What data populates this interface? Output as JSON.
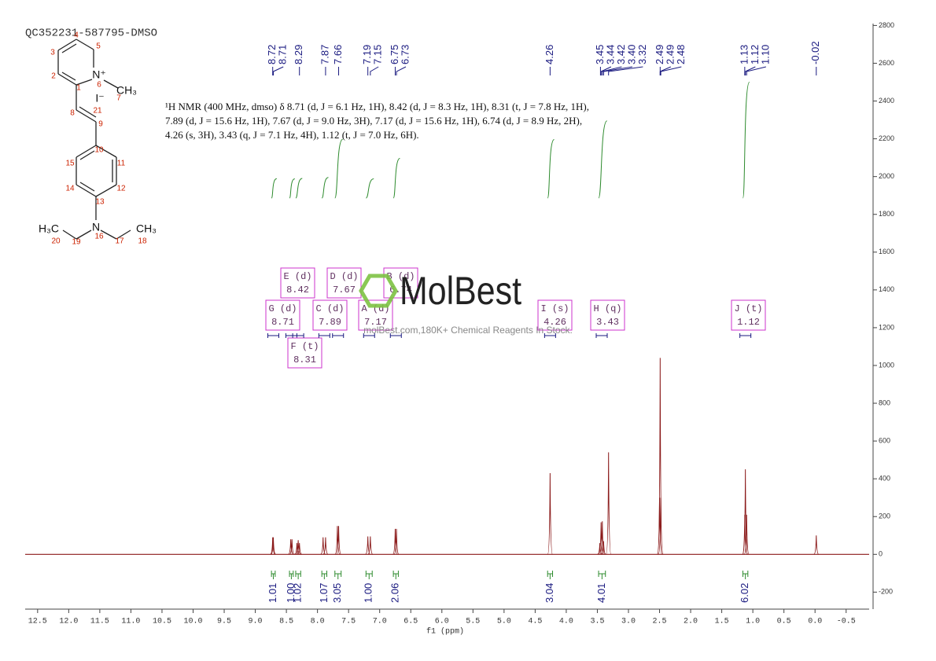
{
  "chart_data": {
    "type": "spectrum",
    "title": "QC352231-587795-DMSO",
    "annotation": [
      "¹H NMR (400 MHz, dmso) δ 8.71 (d, J = 6.1 Hz, 1H), 8.42 (d, J = 8.3 Hz, 1H), 8.31 (t, J = 7.8 Hz, 1H),",
      "7.89 (d, J = 15.6 Hz, 1H), 7.67 (d, J = 9.0 Hz, 3H), 7.17 (d, J = 15.6 Hz, 1H), 6.74 (d, J = 8.9 Hz, 2H),",
      "4.26 (s, 3H), 3.43 (q, J = 7.1 Hz, 4H), 1.12 (t, J = 7.0 Hz, 6H)."
    ],
    "x_label": "f1 (ppm)",
    "color": "#8b1a1a",
    "x": [
      8.72,
      8.71,
      8.43,
      8.41,
      8.33,
      8.31,
      8.29,
      7.91,
      7.87,
      7.68,
      7.66,
      7.19,
      7.15,
      6.75,
      6.73,
      4.26,
      3.46,
      3.44,
      3.42,
      3.4,
      3.32,
      2.5,
      2.49,
      2.48,
      1.13,
      1.12,
      1.1,
      -0.02
    ],
    "values": [
      90,
      90,
      80,
      80,
      60,
      75,
      60,
      90,
      90,
      150,
      150,
      95,
      95,
      135,
      135,
      430,
      60,
      170,
      175,
      70,
      540,
      300,
      1040,
      300,
      210,
      450,
      210,
      100
    ],
    "xlim": [
      12.7,
      -0.87
    ],
    "ylim": [
      -290,
      2810
    ],
    "xticks": [
      12.5,
      {
        "value": 12,
        "label": "12.0"
      },
      11.5,
      {
        "value": 11,
        "label": "11.0"
      },
      10.5,
      {
        "value": 10,
        "label": "10.0"
      },
      9.5,
      {
        "value": 9,
        "label": "9.0"
      },
      8.5,
      {
        "value": 8,
        "label": "8.0"
      },
      7.5,
      {
        "value": 7,
        "label": "7.0"
      },
      6.5,
      {
        "value": 6,
        "label": "6.0"
      },
      5.5,
      {
        "value": 5,
        "label": "5.0"
      },
      4.5,
      {
        "value": 4,
        "label": "4.0"
      },
      3.5,
      {
        "value": 3,
        "label": "3.0"
      },
      2.5,
      {
        "value": 2,
        "label": "2.0"
      },
      1.5,
      {
        "value": 1,
        "label": "1.0"
      },
      0.5,
      {
        "value": 0,
        "label": "0.0"
      },
      -0.5
    ],
    "yticks": [
      -200,
      0,
      200,
      400,
      600,
      800,
      1000,
      1200,
      1400,
      1600,
      1800,
      2000,
      2200,
      2400,
      2600,
      2800
    ],
    "peak_labels": [
      8.72,
      8.71,
      8.29,
      7.87,
      7.66,
      7.19,
      7.15,
      6.75,
      6.73,
      4.26,
      3.45,
      3.44,
      3.42,
      {
        "value": 3.4,
        "label": "3.40"
      },
      3.32,
      2.49,
      2.49,
      2.48,
      1.13,
      1.12,
      {
        "value": 1.1,
        "label": "1.10"
      },
      -0.02
    ],
    "integrals": {
      "ranges": [
        [
          8.74,
          8.68
        ],
        [
          8.45,
          8.39
        ],
        [
          8.35,
          8.27
        ],
        [
          7.93,
          7.85
        ],
        [
          7.72,
          7.62
        ],
        [
          7.22,
          7.12
        ],
        [
          6.78,
          6.7
        ],
        [
          4.3,
          4.22
        ],
        [
          3.48,
          3.37
        ],
        [
          1.16,
          1.08
        ]
      ],
      "values": [
        1.01,
        1,
        1.02,
        1.07,
        3.05,
        1,
        2.06,
        3.04,
        4.01,
        6.02
      ],
      "value_labels": [
        "1.01",
        "1.00",
        "1.02",
        "1.07",
        "3.05",
        "1.00",
        "2.06",
        "3.04",
        "4.01",
        "6.02"
      ]
    },
    "multiplets": [
      {
        "label": "G (d)",
        "shift": 8.71
      },
      {
        "label": "E (d)",
        "shift": 8.42
      },
      {
        "label": "F (t)",
        "shift": 8.31
      },
      {
        "label": "C (d)",
        "shift": 7.89
      },
      {
        "label": "D (d)",
        "shift": 7.67
      },
      {
        "label": "B (d)",
        "shift": 6.74
      },
      {
        "label": "A (d)",
        "shift": 7.17
      },
      {
        "label": "I (s)",
        "shift": 4.26
      },
      {
        "label": "H (q)",
        "shift": 3.43
      },
      {
        "label": "J (t)",
        "shift": 1.12
      }
    ]
  },
  "structure": {
    "atoms": [
      "N⁺",
      "CH₃",
      "I⁻",
      "N",
      "H₃C",
      "CH₃"
    ],
    "numbers": [
      1,
      2,
      3,
      4,
      5,
      6,
      7,
      8,
      9,
      10,
      11,
      12,
      13,
      14,
      15,
      16,
      17,
      18,
      19,
      20,
      21
    ]
  },
  "watermark": {
    "brand": "MolBest",
    "tagline": "molBest.com,180K+ Chemical Reagents In Stock."
  }
}
